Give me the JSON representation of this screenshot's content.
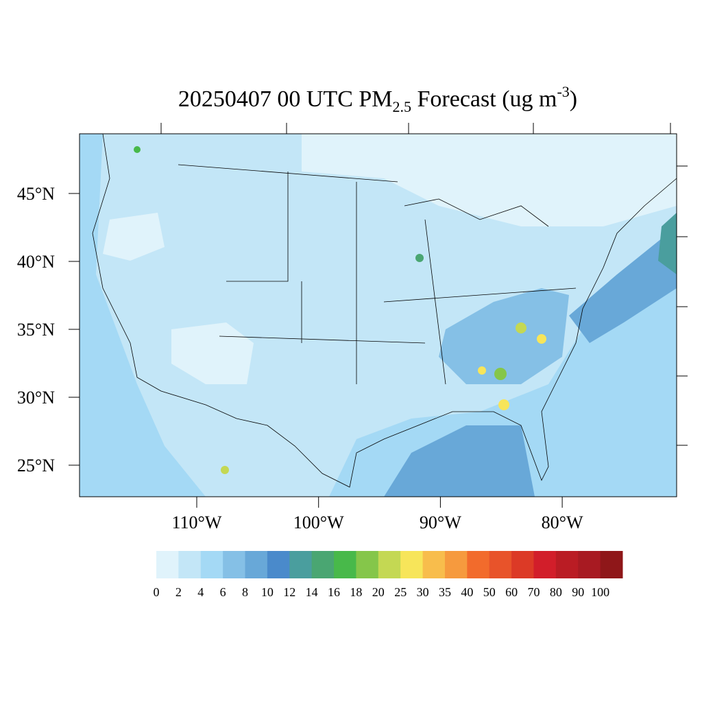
{
  "title": {
    "main": "20250407 00 UTC PM",
    "sub": "2.5",
    "rest": " Forecast (ug m",
    "sup": "-3",
    "end": ")"
  },
  "lat_ticks": [
    {
      "value": 45,
      "label": "45°N"
    },
    {
      "value": 40,
      "label": "40°N"
    },
    {
      "value": 35,
      "label": "35°N"
    },
    {
      "value": 30,
      "label": "30°N"
    },
    {
      "value": 25,
      "label": "25°N"
    }
  ],
  "lon_ticks": [
    {
      "value": -110,
      "label": "110°W"
    },
    {
      "value": -100,
      "label": "100°W"
    },
    {
      "value": -90,
      "label": "90°W"
    },
    {
      "value": -80,
      "label": "80°W"
    }
  ],
  "colorbar": {
    "levels": [
      0,
      2,
      4,
      6,
      8,
      10,
      12,
      14,
      16,
      18,
      20,
      25,
      30,
      35,
      40,
      50,
      60,
      70,
      80,
      90,
      100
    ],
    "colors": [
      "#e0f3fb",
      "#c3e6f7",
      "#a4d9f5",
      "#85c0e6",
      "#68a8d8",
      "#4a8acb",
      "#4a9e9e",
      "#4aa672",
      "#48b94a",
      "#85c64a",
      "#c4d853",
      "#f7e55a",
      "#f8bd4c",
      "#f69a3e",
      "#f26b2c",
      "#e8532a",
      "#dc3a26",
      "#d21e2a",
      "#ba1c24",
      "#a81a22",
      "#8f1719"
    ]
  }
}
